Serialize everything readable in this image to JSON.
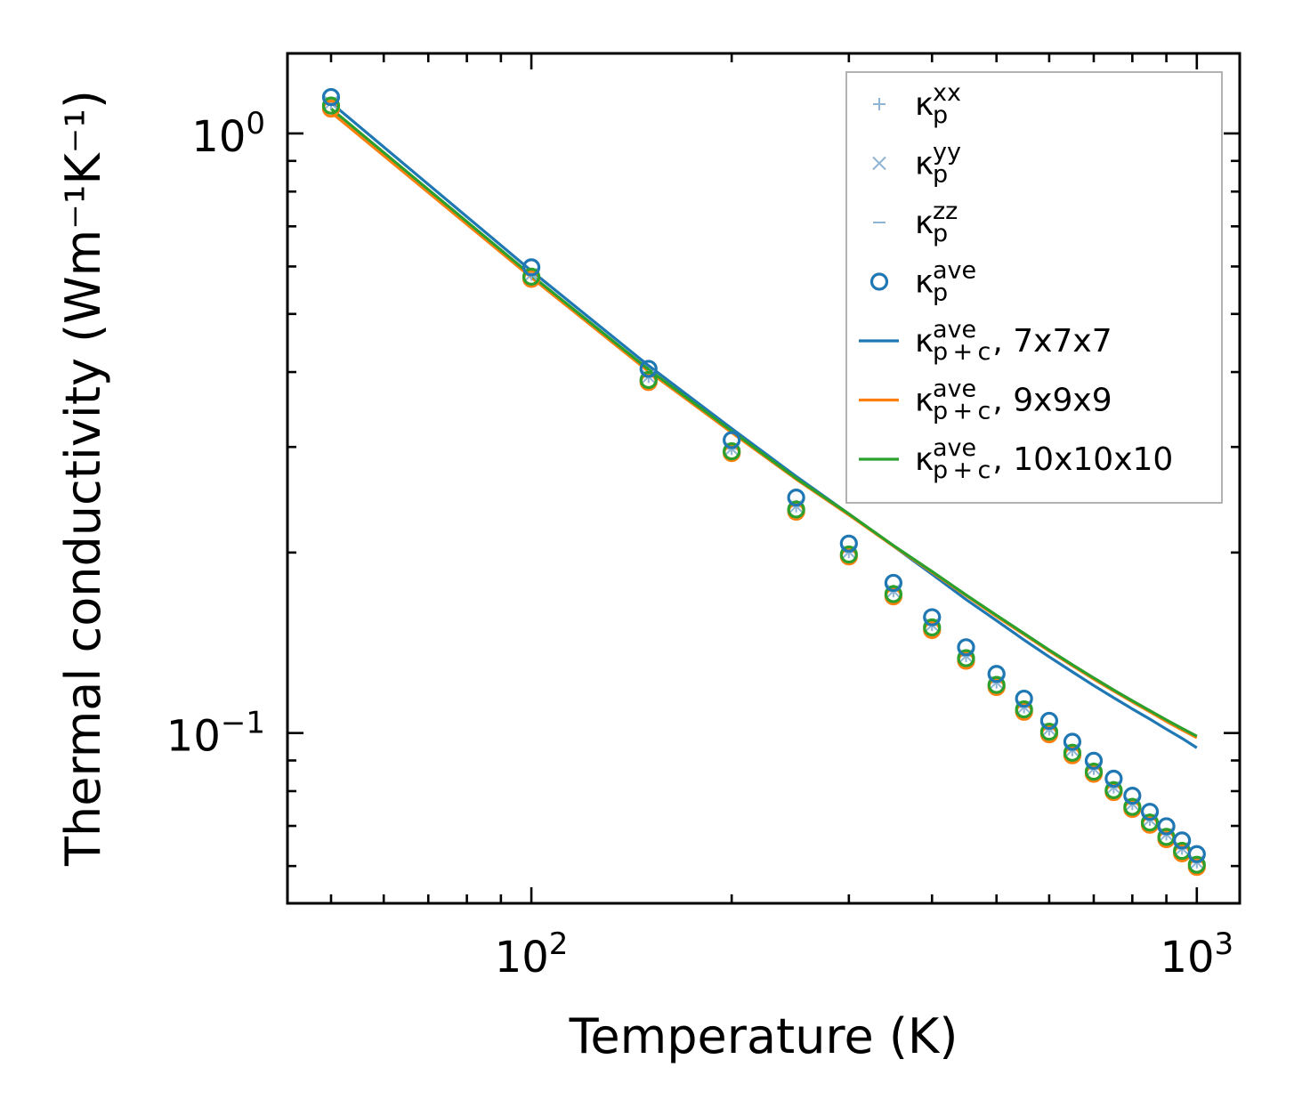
{
  "chart_data": {
    "type": "scatter",
    "title": "",
    "xlabel": "Temperature (K)",
    "ylabel": "Thermal conductivity (Wm⁻¹K⁻¹)",
    "xscale": "log",
    "yscale": "log",
    "xlim": [
      43,
      1160
    ],
    "ylim": [
      0.052,
      1.36
    ],
    "x_major_ticks": [
      {
        "value": 100,
        "base": "10",
        "exp": "2"
      },
      {
        "value": 1000,
        "base": "10",
        "exp": "3"
      }
    ],
    "y_major_ticks": [
      {
        "value": 1.0,
        "base": "10",
        "exp": "0"
      },
      {
        "value": 0.1,
        "base": "10",
        "exp": "−1"
      }
    ],
    "legend_placement": "top-right",
    "colors": {
      "blue": "#1f77b4",
      "orange": "#ff7f0e",
      "green": "#2ca02c",
      "light_blue": "#8fb4d4"
    },
    "temperatures": [
      50,
      100,
      150,
      200,
      250,
      300,
      350,
      400,
      450,
      500,
      550,
      600,
      650,
      700,
      750,
      800,
      850,
      900,
      950,
      1000
    ],
    "series": [
      {
        "name": "kp_xx",
        "type": "marker",
        "marker": "plus",
        "color": "#8fb4d4",
        "legend": {
          "base": "κ",
          "sub": "p",
          "sup": "xx",
          "extra": ""
        },
        "values": [
          1.125,
          0.582,
          0.393,
          0.298,
          0.239,
          0.2005,
          0.1725,
          0.1515,
          0.1345,
          0.1215,
          0.1105,
          0.1015,
          0.0937,
          0.0872,
          0.0812,
          0.0762,
          0.0717,
          0.0678,
          0.0642,
          0.0609
        ]
      },
      {
        "name": "kp_yy",
        "type": "marker",
        "marker": "x",
        "color": "#8fb4d4",
        "legend": {
          "base": "κ",
          "sub": "p",
          "sup": "yy",
          "extra": ""
        },
        "values": [
          1.125,
          0.582,
          0.393,
          0.298,
          0.239,
          0.2005,
          0.1725,
          0.1515,
          0.1345,
          0.1215,
          0.1105,
          0.1015,
          0.0937,
          0.0872,
          0.0812,
          0.0762,
          0.0717,
          0.0678,
          0.0642,
          0.0609
        ]
      },
      {
        "name": "kp_zz",
        "type": "marker",
        "marker": "dash",
        "color": "#8fb4d4",
        "legend": {
          "base": "κ",
          "sub": "p",
          "sup": "zz",
          "extra": ""
        },
        "values": [
          1.125,
          0.582,
          0.393,
          0.298,
          0.239,
          0.2005,
          0.1725,
          0.1515,
          0.1345,
          0.1215,
          0.1105,
          0.1015,
          0.0937,
          0.0872,
          0.0812,
          0.0762,
          0.0717,
          0.0678,
          0.0642,
          0.0609
        ]
      },
      {
        "name": "kp_ave_9x9x9",
        "type": "marker",
        "marker": "circle",
        "color": "#ff7f0e",
        "legend": null,
        "values": [
          1.1,
          0.572,
          0.385,
          0.293,
          0.234,
          0.197,
          0.169,
          0.1485,
          0.132,
          0.1193,
          0.1085,
          0.0995,
          0.0918,
          0.0855,
          0.0797,
          0.0747,
          0.0703,
          0.0665,
          0.063,
          0.0598
        ]
      },
      {
        "name": "kp_ave_10x10x10",
        "type": "marker",
        "marker": "circle",
        "color": "#2ca02c",
        "legend": null,
        "values": [
          1.113,
          0.577,
          0.388,
          0.295,
          0.236,
          0.1985,
          0.1705,
          0.15,
          0.1333,
          0.1203,
          0.1095,
          0.1005,
          0.0927,
          0.0862,
          0.0803,
          0.0753,
          0.0709,
          0.0671,
          0.0636,
          0.0603
        ]
      },
      {
        "name": "kp_ave_7x7x7",
        "type": "marker",
        "marker": "circle",
        "color": "#1f77b4",
        "legend": {
          "base": "κ",
          "sub": "p",
          "sup": "ave",
          "extra": ""
        },
        "values": [
          1.15,
          0.598,
          0.405,
          0.308,
          0.247,
          0.207,
          0.178,
          0.156,
          0.139,
          0.1255,
          0.1141,
          0.1048,
          0.0967,
          0.0899,
          0.0839,
          0.0786,
          0.0739,
          0.0699,
          0.0662,
          0.0628
        ]
      },
      {
        "name": "kpc_ave_7x7x7",
        "type": "line",
        "color": "#1f77b4",
        "legend": {
          "base": "κ",
          "sub": "p + c",
          "sup": "ave",
          "extra": ", 7x7x7"
        },
        "values": [
          1.125,
          0.59,
          0.41,
          0.322,
          0.268,
          0.232,
          0.205,
          0.184,
          0.167,
          0.154,
          0.143,
          0.134,
          0.1265,
          0.12,
          0.1145,
          0.1097,
          0.1055,
          0.1015,
          0.098,
          0.0945
        ]
      },
      {
        "name": "kpc_ave_9x9x9",
        "type": "line",
        "color": "#ff7f0e",
        "legend": {
          "base": "κ",
          "sub": "p + c",
          "sup": "ave",
          "extra": ", 9x9x9"
        },
        "values": [
          1.085,
          0.575,
          0.401,
          0.317,
          0.265,
          0.231,
          0.205,
          0.1855,
          0.1695,
          0.1565,
          0.146,
          0.137,
          0.1295,
          0.123,
          0.1175,
          0.1127,
          0.1085,
          0.1045,
          0.1012,
          0.0982
        ]
      },
      {
        "name": "kpc_ave_10x10x10",
        "type": "line",
        "color": "#2ca02c",
        "legend": {
          "base": "κ",
          "sub": "p + c",
          "sup": "ave",
          "extra": ", 10x10x10"
        },
        "values": [
          1.1,
          0.58,
          0.404,
          0.319,
          0.266,
          0.232,
          0.2055,
          0.186,
          0.17,
          0.1572,
          0.1466,
          0.1376,
          0.13,
          0.1236,
          0.118,
          0.1132,
          0.109,
          0.1052,
          0.1018,
          0.0988
        ]
      }
    ]
  }
}
